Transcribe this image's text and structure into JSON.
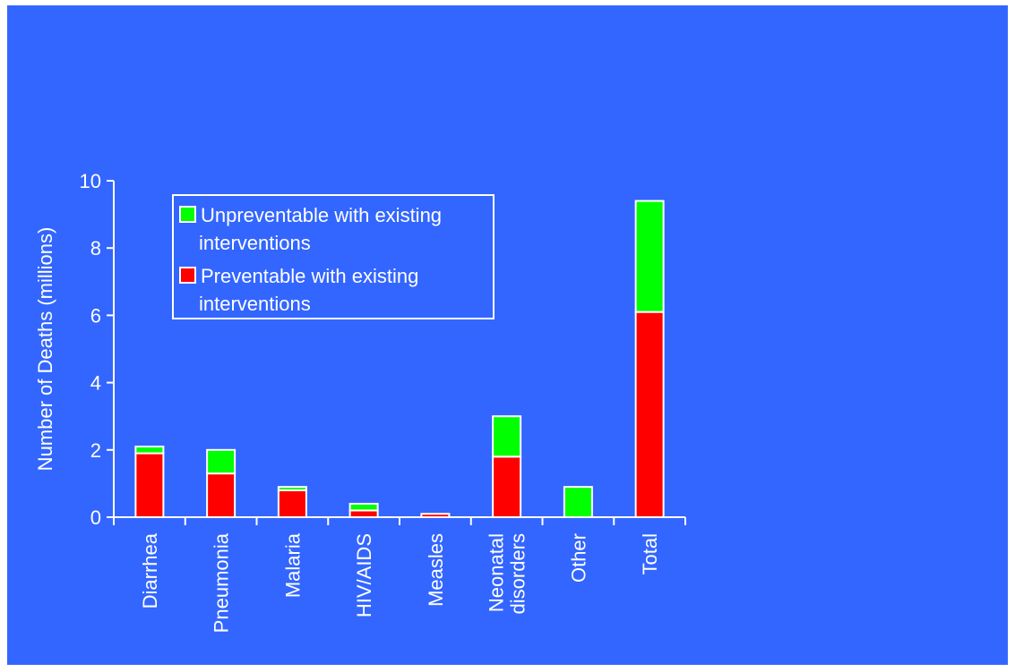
{
  "chart_data": {
    "type": "bar",
    "stacked": true,
    "categories": [
      "Diarrhea",
      "Pneumonia",
      "Malaria",
      "HIV/AIDS",
      "Measles",
      "Neonatal disorders",
      "Other",
      "Total"
    ],
    "category_lines": [
      [
        "Diarrhea"
      ],
      [
        "Pneumonia"
      ],
      [
        "Malaria"
      ],
      [
        "HIV/AIDS"
      ],
      [
        "Measles"
      ],
      [
        "Neonatal",
        "disorders"
      ],
      [
        "Other"
      ],
      [
        "Total"
      ]
    ],
    "series": [
      {
        "name": "Preventable with existing interventions",
        "legend_lines": [
          "Preventable with existing",
          "interventions"
        ],
        "color": "#ff0000",
        "values": [
          1.9,
          1.3,
          0.8,
          0.2,
          0.1,
          1.8,
          0.0,
          6.1
        ]
      },
      {
        "name": "Unpreventable with existing interventions",
        "legend_lines": [
          "Unpreventable with existing",
          "interventions"
        ],
        "color": "#00ff00",
        "values": [
          0.2,
          0.7,
          0.1,
          0.2,
          0.0,
          1.2,
          0.9,
          3.3
        ]
      }
    ],
    "title": "",
    "xlabel": "",
    "ylabel": "Number of Deaths (millions)",
    "ylim": [
      0,
      10
    ],
    "yticks": [
      0,
      2,
      4,
      6,
      8,
      10
    ],
    "grid": false,
    "legend_position": "top-left",
    "background_color": "#3366ff",
    "axis_color": "#ffffff"
  }
}
